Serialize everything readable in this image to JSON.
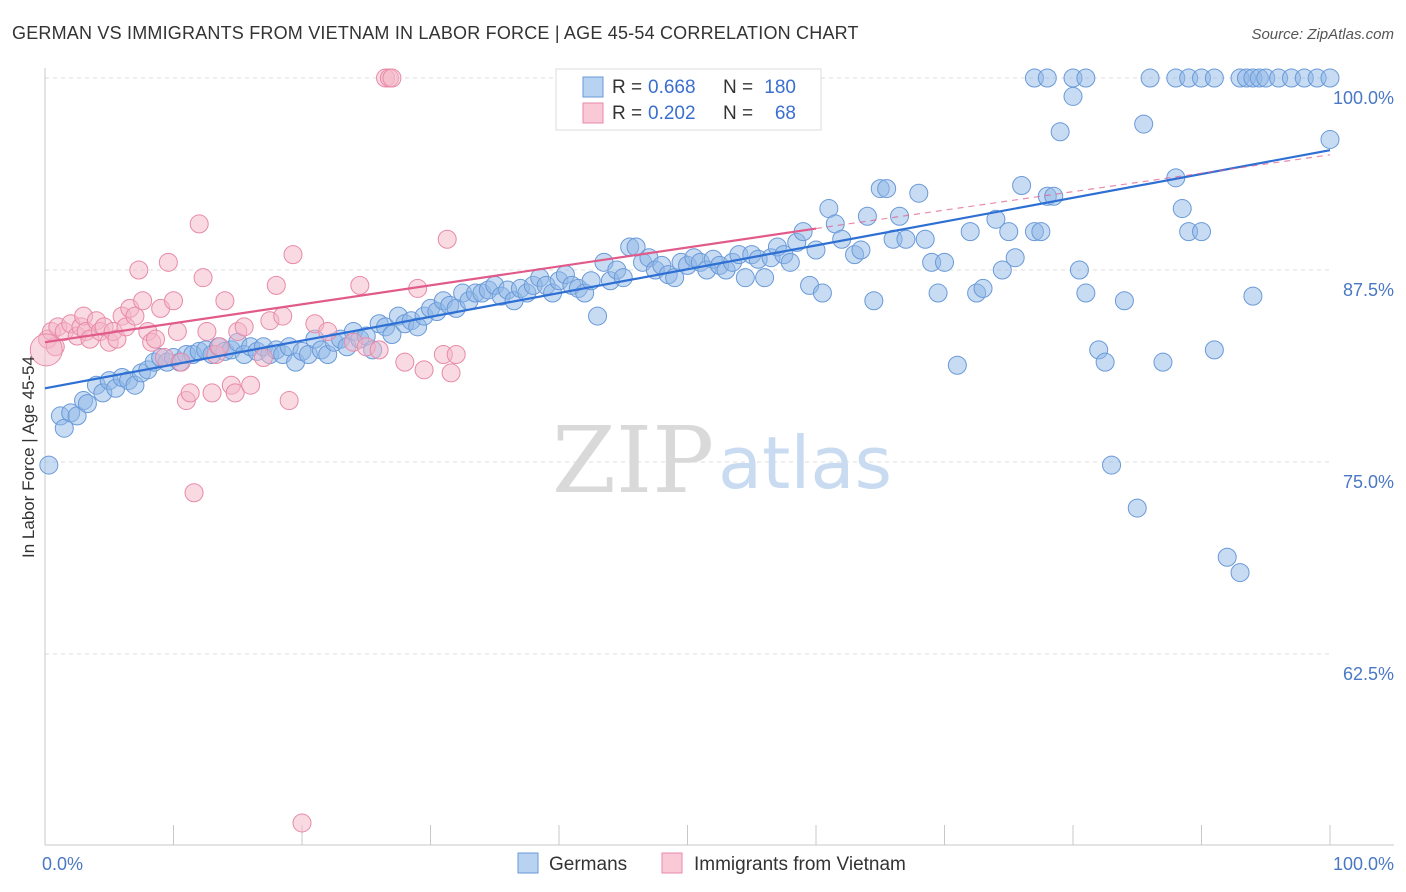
{
  "chart_data": {
    "type": "scatter",
    "title": "GERMAN VS IMMIGRANTS FROM VIETNAM IN LABOR FORCE | AGE 45-54 CORRELATION CHART",
    "source": "Source: ZipAtlas.com",
    "xlabel": "",
    "ylabel": "In Labor Force | Age 45-54",
    "xlim": [
      0,
      100
    ],
    "ylim": [
      50,
      102.5
    ],
    "x_tick_labels": [
      "0.0%",
      "100.0%"
    ],
    "y_ticks": [
      {
        "value": 100,
        "label": "100.0%"
      },
      {
        "value": 87.5,
        "label": "87.5%"
      },
      {
        "value": 75,
        "label": "75.0%"
      },
      {
        "value": 62.5,
        "label": "62.5%"
      }
    ],
    "grid": "horizontal-dashed",
    "watermark": {
      "zip": "ZIP",
      "atlas": "atlas"
    },
    "legend": {
      "position": "top-center",
      "rows": [
        {
          "r_label": "R =",
          "r_value": "0.668",
          "n_label": "N =",
          "n_value": "180"
        },
        {
          "r_label": "R =",
          "r_value": "0.202",
          "n_label": "N =",
          "n_value": "68"
        }
      ]
    },
    "series": [
      {
        "name": "Germans",
        "color": "#90b8e8",
        "stroke": "#6a9ad8",
        "trend_color": "#2e6fd4",
        "trend": {
          "x": [
            0,
            100
          ],
          "y": [
            79.8,
            95.3
          ]
        },
        "points": [
          [
            0.3,
            74.8
          ],
          [
            1.2,
            78.0
          ],
          [
            1.5,
            77.2
          ],
          [
            2,
            78.2
          ],
          [
            2.5,
            78.0
          ],
          [
            3,
            79.0
          ],
          [
            3.3,
            78.8
          ],
          [
            4,
            80.0
          ],
          [
            4.5,
            79.5
          ],
          [
            5,
            80.3
          ],
          [
            5.5,
            79.8
          ],
          [
            6,
            80.5
          ],
          [
            6.5,
            80.3
          ],
          [
            7,
            80.0
          ],
          [
            7.5,
            80.8
          ],
          [
            8,
            81.0
          ],
          [
            8.5,
            81.5
          ],
          [
            9,
            81.8
          ],
          [
            9.5,
            81.5
          ],
          [
            10,
            81.8
          ],
          [
            10.5,
            81.5
          ],
          [
            11,
            82.0
          ],
          [
            11.5,
            82.0
          ],
          [
            12,
            82.2
          ],
          [
            12.5,
            82.3
          ],
          [
            13,
            82.0
          ],
          [
            13.5,
            82.5
          ],
          [
            14,
            82.2
          ],
          [
            14.5,
            82.3
          ],
          [
            15,
            82.8
          ],
          [
            15.5,
            82.0
          ],
          [
            16,
            82.5
          ],
          [
            16.5,
            82.2
          ],
          [
            17,
            82.5
          ],
          [
            17.5,
            82.0
          ],
          [
            18,
            82.3
          ],
          [
            18.5,
            82.0
          ],
          [
            19,
            82.5
          ],
          [
            19.5,
            81.5
          ],
          [
            20,
            82.2
          ],
          [
            20.5,
            82.0
          ],
          [
            21,
            83.0
          ],
          [
            21.5,
            82.3
          ],
          [
            22,
            82.0
          ],
          [
            22.5,
            82.8
          ],
          [
            23,
            83.0
          ],
          [
            23.5,
            82.5
          ],
          [
            24,
            83.5
          ],
          [
            24.5,
            83.0
          ],
          [
            25,
            83.2
          ],
          [
            25.5,
            82.3
          ],
          [
            26,
            84.0
          ],
          [
            26.5,
            83.8
          ],
          [
            27,
            83.3
          ],
          [
            27.5,
            84.5
          ],
          [
            28,
            84.0
          ],
          [
            28.5,
            84.2
          ],
          [
            29,
            83.8
          ],
          [
            29.5,
            84.5
          ],
          [
            30,
            85.0
          ],
          [
            30.5,
            84.8
          ],
          [
            31,
            85.5
          ],
          [
            31.5,
            85.2
          ],
          [
            32,
            85.0
          ],
          [
            32.5,
            86.0
          ],
          [
            33,
            85.5
          ],
          [
            33.5,
            86.0
          ],
          [
            34,
            86.0
          ],
          [
            34.5,
            86.2
          ],
          [
            35,
            86.5
          ],
          [
            35.5,
            85.8
          ],
          [
            36,
            86.2
          ],
          [
            36.5,
            85.5
          ],
          [
            37,
            86.3
          ],
          [
            37.5,
            86.0
          ],
          [
            38,
            86.5
          ],
          [
            38.5,
            87.0
          ],
          [
            39,
            86.5
          ],
          [
            39.5,
            86.0
          ],
          [
            40,
            86.8
          ],
          [
            40.5,
            87.2
          ],
          [
            41,
            86.5
          ],
          [
            41.5,
            86.3
          ],
          [
            42,
            86.0
          ],
          [
            42.5,
            86.8
          ],
          [
            43,
            84.5
          ],
          [
            43.5,
            88.0
          ],
          [
            44,
            86.8
          ],
          [
            44.5,
            87.5
          ],
          [
            45,
            87.0
          ],
          [
            45.5,
            89.0
          ],
          [
            46,
            89.0
          ],
          [
            46.5,
            88.0
          ],
          [
            47,
            88.3
          ],
          [
            47.5,
            87.5
          ],
          [
            48,
            87.8
          ],
          [
            48.5,
            87.2
          ],
          [
            49,
            87.0
          ],
          [
            49.5,
            88.0
          ],
          [
            50,
            87.8
          ],
          [
            50.5,
            88.3
          ],
          [
            51,
            88.0
          ],
          [
            51.5,
            87.5
          ],
          [
            52,
            88.2
          ],
          [
            52.5,
            87.8
          ],
          [
            53,
            87.5
          ],
          [
            53.5,
            88.0
          ],
          [
            54,
            88.5
          ],
          [
            54.5,
            87.0
          ],
          [
            55,
            88.5
          ],
          [
            55.5,
            88.2
          ],
          [
            56,
            87.0
          ],
          [
            56.5,
            88.3
          ],
          [
            57,
            89.0
          ],
          [
            57.5,
            88.5
          ],
          [
            58,
            88.0
          ],
          [
            58.5,
            89.3
          ],
          [
            59,
            90.0
          ],
          [
            59.5,
            86.5
          ],
          [
            60,
            88.8
          ],
          [
            60.5,
            86.0
          ],
          [
            61,
            91.5
          ],
          [
            61.5,
            90.5
          ],
          [
            62,
            89.5
          ],
          [
            63,
            88.5
          ],
          [
            63.5,
            88.8
          ],
          [
            64,
            91.0
          ],
          [
            64.5,
            85.5
          ],
          [
            65,
            92.8
          ],
          [
            65.5,
            92.8
          ],
          [
            66,
            89.5
          ],
          [
            66.5,
            91.0
          ],
          [
            67,
            89.5
          ],
          [
            68,
            92.5
          ],
          [
            68.5,
            89.5
          ],
          [
            69,
            88.0
          ],
          [
            69.5,
            86.0
          ],
          [
            70,
            88.0
          ],
          [
            71,
            81.3
          ],
          [
            72,
            90.0
          ],
          [
            72.5,
            86.0
          ],
          [
            73,
            86.3
          ],
          [
            74,
            90.8
          ],
          [
            74.5,
            87.5
          ],
          [
            75,
            90.0
          ],
          [
            75.5,
            88.3
          ],
          [
            76,
            93.0
          ],
          [
            77,
            90.0
          ],
          [
            77.5,
            90.0
          ],
          [
            78,
            92.3
          ],
          [
            78.5,
            92.3
          ],
          [
            79,
            96.5
          ],
          [
            80,
            98.8
          ],
          [
            80.5,
            87.5
          ],
          [
            81,
            86.0
          ],
          [
            82,
            82.3
          ],
          [
            82.5,
            81.5
          ],
          [
            83,
            74.8
          ],
          [
            84,
            85.5
          ],
          [
            85,
            72.0
          ],
          [
            85.5,
            97.0
          ],
          [
            87,
            81.5
          ],
          [
            88,
            93.5
          ],
          [
            88.5,
            91.5
          ],
          [
            89,
            90.0
          ],
          [
            90,
            90.0
          ],
          [
            91,
            82.3
          ],
          [
            92,
            68.8
          ],
          [
            93,
            67.8
          ],
          [
            94,
            85.8
          ],
          [
            77,
            100
          ],
          [
            78,
            100
          ],
          [
            80,
            100
          ],
          [
            81,
            100
          ],
          [
            86,
            100
          ],
          [
            88,
            100
          ],
          [
            89,
            100
          ],
          [
            90,
            100
          ],
          [
            91,
            100
          ],
          [
            93,
            100
          ],
          [
            93.5,
            100
          ],
          [
            94,
            100
          ],
          [
            94.5,
            100
          ],
          [
            95,
            100
          ],
          [
            96,
            100
          ],
          [
            97,
            100
          ],
          [
            98,
            100
          ],
          [
            99,
            100
          ],
          [
            100,
            96.0
          ],
          [
            100,
            100
          ]
        ]
      },
      {
        "name": "Immigrants from Vietnam",
        "color": "#f4b6c8",
        "stroke": "#e88aa8",
        "trend_color": "#e05a8a",
        "trend": {
          "x": [
            0,
            60
          ],
          "y": [
            82.8,
            90.2
          ]
        },
        "trend_dashed_extension": {
          "x": [
            60,
            100
          ],
          "y": [
            90.2,
            95.0
          ]
        },
        "points": [
          [
            0.2,
            83.0
          ],
          [
            0.5,
            83.5
          ],
          [
            0.8,
            82.5
          ],
          [
            1,
            83.8
          ],
          [
            1.5,
            83.5
          ],
          [
            2,
            84.0
          ],
          [
            2.5,
            83.2
          ],
          [
            2.8,
            83.8
          ],
          [
            3,
            84.5
          ],
          [
            3.2,
            83.5
          ],
          [
            3.5,
            83.0
          ],
          [
            4,
            84.2
          ],
          [
            4.3,
            83.5
          ],
          [
            4.6,
            83.8
          ],
          [
            5,
            82.8
          ],
          [
            5.3,
            83.5
          ],
          [
            5.6,
            83.0
          ],
          [
            6,
            84.5
          ],
          [
            6.3,
            83.8
          ],
          [
            6.6,
            85.0
          ],
          [
            7,
            84.5
          ],
          [
            7.3,
            87.5
          ],
          [
            7.6,
            85.5
          ],
          [
            8,
            83.5
          ],
          [
            8.3,
            82.8
          ],
          [
            8.6,
            83.0
          ],
          [
            9,
            85.0
          ],
          [
            9.3,
            81.8
          ],
          [
            9.6,
            88.0
          ],
          [
            10,
            85.5
          ],
          [
            10.3,
            83.5
          ],
          [
            10.6,
            81.5
          ],
          [
            11,
            79.0
          ],
          [
            11.3,
            79.5
          ],
          [
            11.6,
            73.0
          ],
          [
            12,
            90.5
          ],
          [
            12.3,
            87.0
          ],
          [
            12.6,
            83.5
          ],
          [
            13,
            79.5
          ],
          [
            13.3,
            82.0
          ],
          [
            13.6,
            82.5
          ],
          [
            14,
            85.5
          ],
          [
            14.5,
            80.0
          ],
          [
            14.8,
            79.5
          ],
          [
            15,
            83.5
          ],
          [
            15.5,
            83.8
          ],
          [
            16,
            80.0
          ],
          [
            17,
            81.8
          ],
          [
            17.5,
            84.2
          ],
          [
            18,
            86.5
          ],
          [
            18.5,
            84.5
          ],
          [
            19,
            79.0
          ],
          [
            19.3,
            88.5
          ],
          [
            20,
            51.5
          ],
          [
            21,
            84.0
          ],
          [
            22,
            83.5
          ],
          [
            24,
            82.8
          ],
          [
            24.5,
            86.5
          ],
          [
            25,
            82.5
          ],
          [
            26,
            82.3
          ],
          [
            26.5,
            100
          ],
          [
            26.8,
            100
          ],
          [
            27,
            100
          ],
          [
            28,
            81.5
          ],
          [
            29,
            86.3
          ],
          [
            29.5,
            81.0
          ],
          [
            31,
            82.0
          ],
          [
            31.3,
            89.5
          ],
          [
            31.6,
            80.8
          ],
          [
            32,
            82.0
          ]
        ]
      }
    ],
    "bottom_legend": [
      "Germans",
      "Immigrants from Vietnam"
    ]
  }
}
